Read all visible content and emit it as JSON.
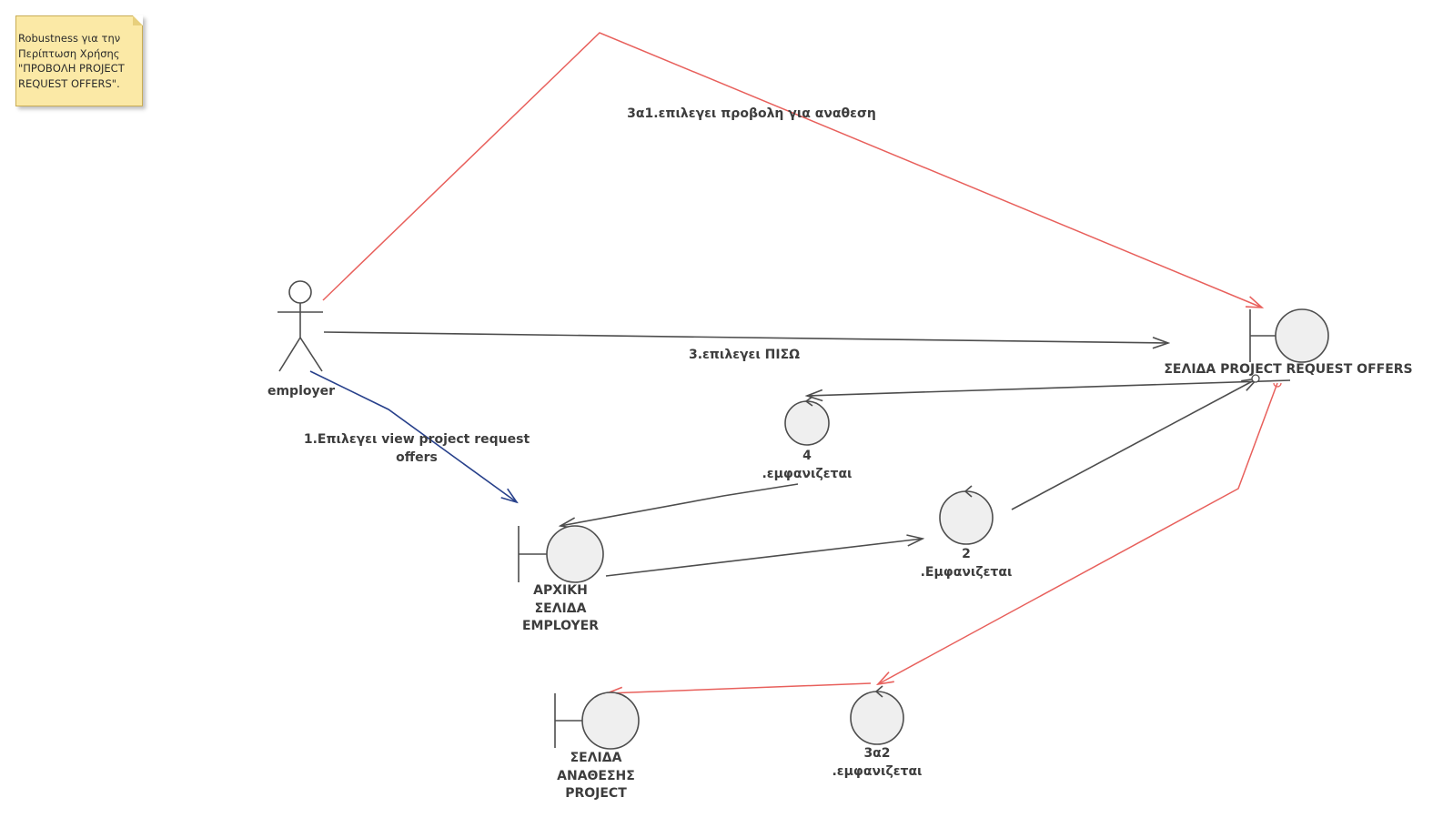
{
  "note": {
    "text": "Robustness για την\nΠερίπτωση Χρήσης\n\"ΠΡΟΒΟΛΗ PROJECT\nREQUEST OFFERS\"."
  },
  "actor": {
    "name": "employer"
  },
  "boundaries": {
    "project_request_offers": "ΣΕΛΙΔΑ PROJECT REQUEST OFFERS",
    "employer_home": "ΑΡΧΙΚΗ\nΣΕΛΙΔΑ\nEMPLOYER",
    "assignment_page": "ΣΕΛΙΔΑ\nΑΝΑΘΕΣΗΣ\nPROJECT"
  },
  "controls": {
    "c4": "4\n.εμφανιζεται",
    "c2": "2\n.Εμφανιζεται",
    "c3a2": "3α2\n.εμφανιζεται"
  },
  "messages": {
    "m1": "1.Επιλεγει view project request\noffers",
    "m3": "3.επιλεγει ΠΙΣΩ",
    "m3a1": "3α1.επιλεγει προβολη για αναθεση"
  },
  "colors": {
    "line": "#4d4d4d",
    "alternate_flow": "#e8605c",
    "main_start": "#27408b",
    "element_fill": "#efefef",
    "note_fill": "#fbe9a6"
  }
}
